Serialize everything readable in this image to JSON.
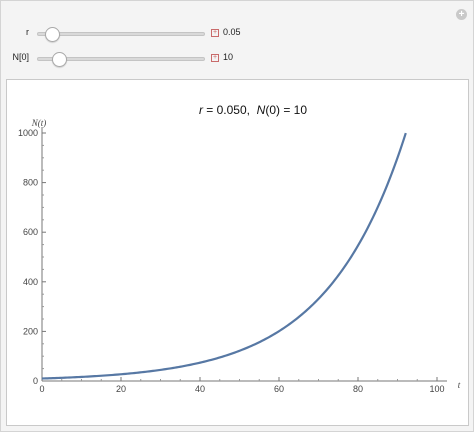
{
  "controls": {
    "add_icon": "+",
    "r": {
      "label": "r",
      "value_text": "0.05",
      "value": 0.05,
      "min": 0.0,
      "max": 1.0
    },
    "n0": {
      "label": "N[0]",
      "value_text": "10",
      "value": 10,
      "min": 0,
      "max": 100
    }
  },
  "chart_data": {
    "type": "line",
    "title_parts": {
      "r_label": "r",
      "r_value": " = 0.050,  ",
      "n_label": "N",
      "n_value": "(0) = 10"
    },
    "xlabel": "t",
    "ylabel": "N(t)",
    "xlim": [
      0,
      100
    ],
    "ylim": [
      0,
      1000
    ],
    "x_ticks": [
      "0",
      "20",
      "40",
      "60",
      "80",
      "100"
    ],
    "y_ticks": [
      "0",
      "200",
      "400",
      "600",
      "800",
      "1000"
    ],
    "x_tick_values": [
      0,
      20,
      40,
      60,
      80,
      100
    ],
    "y_tick_values": [
      0,
      200,
      400,
      600,
      800,
      1000
    ],
    "series": [
      {
        "r": 0.05,
        "n0": 10,
        "t_max": 92.1,
        "color": "#5778a4"
      }
    ],
    "grid": false
  }
}
